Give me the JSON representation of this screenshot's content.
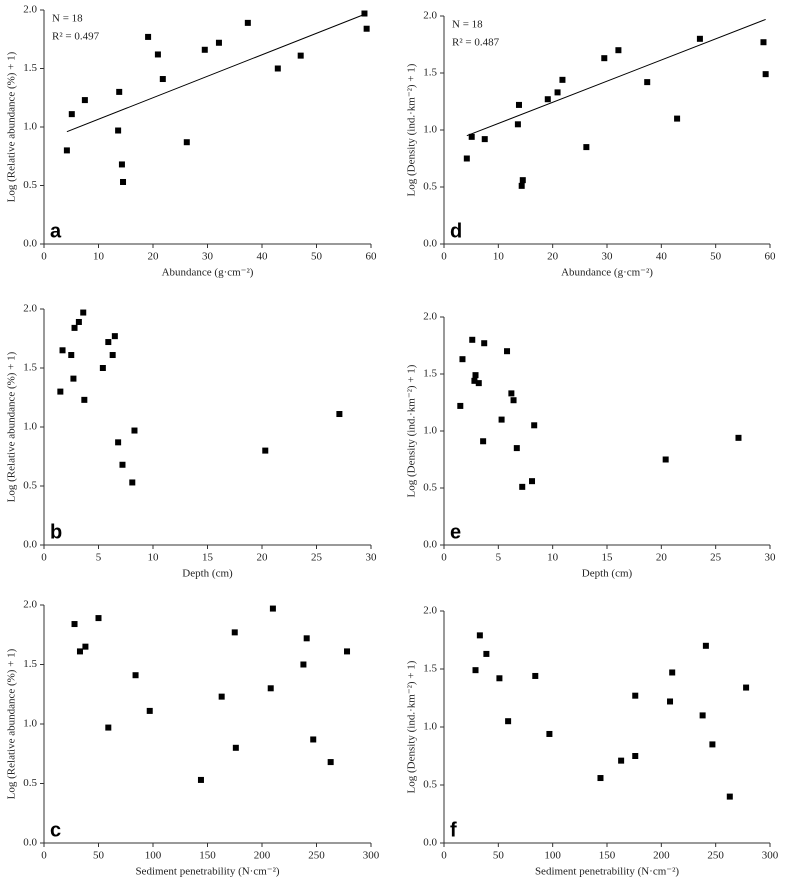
{
  "chart_data": [
    {
      "type": "scatter",
      "panel_label": "a",
      "xlabel": "Abundance (g·cm⁻²)",
      "ylabel": "Log (Relative abundance (%) + 1)",
      "color": "#000000",
      "annotations": [
        "N = 18",
        "R² = 0.497"
      ],
      "x": [
        4.2,
        5.1,
        7.5,
        13.8,
        13.6,
        14.3,
        14.5,
        19.1,
        20.9,
        21.8,
        26.2,
        29.5,
        32.1,
        37.4,
        42.9,
        47.1,
        58.8,
        59.2
      ],
      "values": [
        0.8,
        1.11,
        1.23,
        1.3,
        0.97,
        0.68,
        0.53,
        1.77,
        1.62,
        1.41,
        0.87,
        1.66,
        1.72,
        1.89,
        1.5,
        1.61,
        1.97,
        1.84
      ],
      "fit": {
        "x": [
          4.2,
          59.2
        ],
        "y": [
          0.96,
          1.97
        ]
      },
      "xlim": [
        0,
        60
      ],
      "xticks": [
        0,
        10,
        20,
        30,
        40,
        50,
        60
      ],
      "ylim": [
        0,
        2
      ],
      "yticks": [
        {
          "value": 0,
          "label": "0.0"
        },
        {
          "value": 0.5,
          "label": "0.5"
        },
        {
          "value": 1,
          "label": "1.0"
        },
        {
          "value": 1.5,
          "label": "1.5"
        },
        {
          "value": 2,
          "label": "2.0"
        }
      ]
    },
    {
      "type": "scatter",
      "panel_label": "b",
      "xlabel": "Depth (cm)",
      "ylabel": "Log (Relative abundance (%) + 1)",
      "color": "#000000",
      "x": [
        1.5,
        1.7,
        2.5,
        2.7,
        2.8,
        3.2,
        3.6,
        3.7,
        5.4,
        5.9,
        6.3,
        6.5,
        6.8,
        7.2,
        8.1,
        8.3,
        20.3,
        27.1
      ],
      "values": [
        1.3,
        1.65,
        1.61,
        1.41,
        1.84,
        1.89,
        1.97,
        1.23,
        1.5,
        1.72,
        1.61,
        1.77,
        0.87,
        0.68,
        0.53,
        0.97,
        0.8,
        1.11
      ],
      "xlim": [
        0,
        30
      ],
      "xticks": [
        0,
        5,
        10,
        15,
        20,
        25,
        30
      ],
      "ylim": [
        0,
        2
      ],
      "yticks": [
        {
          "value": 0,
          "label": "0.0"
        },
        {
          "value": 0.5,
          "label": "0.5"
        },
        {
          "value": 1,
          "label": "1.0"
        },
        {
          "value": 1.5,
          "label": "1.5"
        },
        {
          "value": 2,
          "label": "2.0"
        }
      ]
    },
    {
      "type": "scatter",
      "panel_label": "c",
      "xlabel": "Sediment penetrability (N·cm⁻²)",
      "ylabel": "Log (Relative abundance (%) + 1)",
      "color": "#000000",
      "x": [
        28,
        33,
        38,
        50,
        59,
        84,
        97,
        144,
        163,
        175,
        176,
        208,
        210,
        238,
        241,
        247,
        263,
        278
      ],
      "values": [
        1.84,
        1.61,
        1.65,
        1.89,
        0.97,
        1.41,
        1.11,
        0.53,
        1.23,
        1.77,
        0.8,
        1.3,
        1.97,
        1.5,
        1.72,
        0.87,
        0.68,
        1.61
      ],
      "xlim": [
        0,
        300
      ],
      "xticks": [
        0,
        50,
        100,
        150,
        200,
        250,
        300
      ],
      "ylim": [
        0,
        2
      ],
      "yticks": [
        {
          "value": 0,
          "label": "0.0"
        },
        {
          "value": 0.5,
          "label": "0.5"
        },
        {
          "value": 1,
          "label": "1.0"
        },
        {
          "value": 1.5,
          "label": "1.5"
        },
        {
          "value": 2,
          "label": "2.0"
        }
      ]
    },
    {
      "type": "scatter",
      "panel_label": "d",
      "xlabel": "Abundance (g·cm⁻²)",
      "ylabel": "Log (Density (ind.·km⁻²) + 1)",
      "color": "#000000",
      "annotations": [
        "N = 18",
        "R² = 0.487"
      ],
      "x": [
        4.2,
        5.1,
        7.5,
        13.6,
        13.8,
        14.3,
        14.5,
        19.1,
        20.9,
        21.8,
        26.2,
        29.5,
        32.1,
        37.4,
        42.9,
        47.1,
        58.8,
        59.2
      ],
      "values": [
        0.75,
        0.94,
        0.92,
        1.05,
        1.22,
        0.51,
        0.56,
        1.27,
        1.33,
        1.44,
        0.85,
        1.63,
        1.7,
        1.42,
        1.1,
        1.8,
        1.77,
        1.49
      ],
      "fit": {
        "x": [
          4.2,
          59.2
        ],
        "y": [
          0.95,
          1.97
        ]
      },
      "xlim": [
        0,
        60
      ],
      "xticks": [
        0,
        10,
        20,
        30,
        40,
        50,
        60
      ],
      "ylim": [
        0,
        2
      ],
      "yticks": [
        {
          "value": 0,
          "label": "0.0"
        },
        {
          "value": 0.5,
          "label": "0.5"
        },
        {
          "value": 1,
          "label": "1.0"
        },
        {
          "value": 1.5,
          "label": "1.5"
        },
        {
          "value": 2,
          "label": "2.0"
        }
      ]
    },
    {
      "type": "scatter",
      "panel_label": "e",
      "xlabel": "Depth (cm)",
      "ylabel": "Log (Density (ind.·km⁻²) + 1)",
      "color": "#000000",
      "x": [
        1.5,
        1.7,
        2.6,
        2.8,
        2.9,
        3.2,
        3.6,
        3.7,
        5.3,
        5.8,
        6.2,
        6.4,
        6.7,
        7.2,
        8.1,
        8.3,
        20.4,
        27.1
      ],
      "values": [
        1.22,
        1.63,
        1.8,
        1.44,
        1.49,
        1.42,
        0.91,
        1.77,
        1.1,
        1.7,
        1.33,
        1.27,
        0.85,
        0.51,
        0.56,
        1.05,
        0.75,
        0.94
      ],
      "xlim": [
        0,
        30
      ],
      "xticks": [
        0,
        5,
        10,
        15,
        20,
        25,
        30
      ],
      "ylim": [
        0,
        2
      ],
      "yticks": [
        {
          "value": 0,
          "label": "0.0"
        },
        {
          "value": 0.5,
          "label": "0.5"
        },
        {
          "value": 1,
          "label": "1.0"
        },
        {
          "value": 1.5,
          "label": "1.5"
        },
        {
          "value": 2,
          "label": "2.0"
        }
      ]
    },
    {
      "type": "scatter",
      "panel_label": "f",
      "xlabel": "Sediment penetrability (N·cm⁻²)",
      "ylabel": "Log (Density (ind.·km⁻²) + 1)",
      "color": "#000000",
      "x": [
        29,
        33,
        39,
        51,
        59,
        84,
        97,
        144,
        163,
        176,
        176,
        208,
        210,
        238,
        241,
        247,
        263,
        278
      ],
      "values": [
        1.49,
        1.79,
        1.63,
        1.42,
        1.05,
        1.44,
        0.94,
        0.56,
        0.71,
        0.75,
        1.27,
        1.22,
        1.47,
        1.1,
        1.7,
        0.85,
        0.4,
        1.34
      ],
      "xlim": [
        0,
        300
      ],
      "xticks": [
        0,
        50,
        100,
        150,
        200,
        250,
        300
      ],
      "ylim": [
        0,
        2
      ],
      "yticks": [
        {
          "value": 0,
          "label": "0.0"
        },
        {
          "value": 0.5,
          "label": "0.5"
        },
        {
          "value": 1,
          "label": "1.0"
        },
        {
          "value": 1.5,
          "label": "1.5"
        },
        {
          "value": 2,
          "label": "2.0"
        }
      ]
    }
  ]
}
